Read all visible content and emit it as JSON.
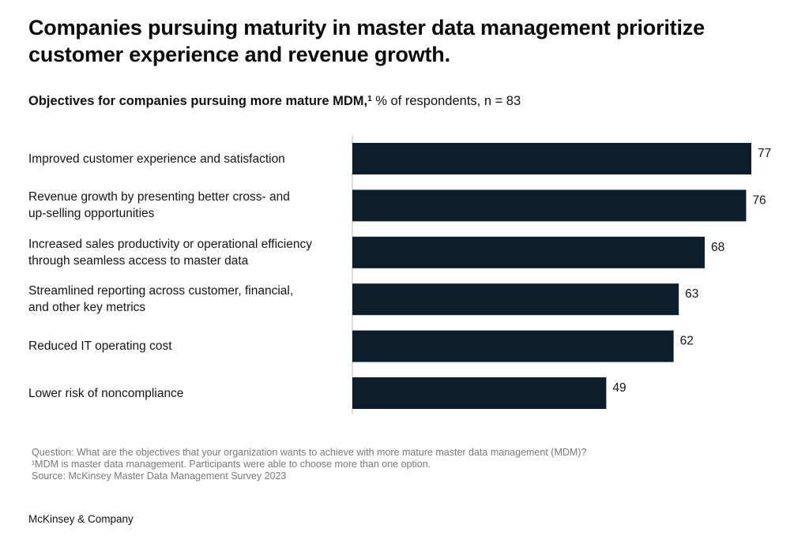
{
  "title": "Companies pursuing maturity in master data management prioritize customer experience and revenue growth.",
  "subtitle": {
    "bold_text": "Objectives for companies pursuing more mature MDM,",
    "footnote_mark": "1",
    "rest": " % of respondents, n = 83"
  },
  "colors": {
    "bar": "#0c1d2b",
    "axis": "#bdbdbd",
    "footnote_text": "#7a7a7a"
  },
  "chart_data": {
    "type": "bar",
    "orientation": "horizontal",
    "categories": [
      "Improved customer experience and satisfaction",
      "Revenue growth by presenting better cross- and up-selling opportunities",
      "Increased sales productivity or operational efficiency through seamless access to master data",
      "Streamlined reporting across customer, financial, and other key metrics",
      "Reduced IT operating cost",
      "Lower risk of noncompliance"
    ],
    "category_label_lines": [
      [
        "Improved customer experience and satisfaction"
      ],
      [
        "Revenue growth by presenting better cross- and",
        "up-selling opportunities"
      ],
      [
        "Increased sales productivity or operational efficiency",
        "through seamless access to master data"
      ],
      [
        "Streamlined reporting across customer, financial,",
        "and other key metrics"
      ],
      [
        "Reduced IT operating cost"
      ],
      [
        "Lower risk of noncompliance"
      ]
    ],
    "values": [
      77,
      76,
      68,
      63,
      62,
      49
    ],
    "data_labels": [
      "77",
      "76",
      "68",
      "63",
      "62",
      "49"
    ],
    "xlim": [
      0,
      77
    ],
    "grid": false,
    "legend": "none"
  },
  "footnotes": {
    "question": "Question: What are the objectives that your organization wants to achieve with more mature master data management (MDM)?",
    "note1": "¹MDM is master data management. Participants were able to choose more than one option.",
    "source": "Source: McKinsey Master Data Management Survey 2023"
  },
  "brand": "McKinsey & Company"
}
